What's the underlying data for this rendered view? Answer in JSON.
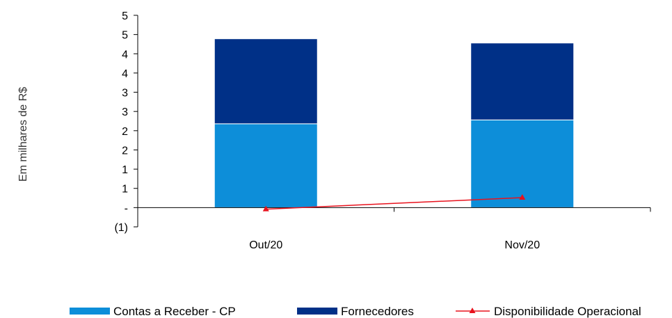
{
  "chart_data": {
    "type": "bar",
    "stacked": true,
    "categories": [
      "Out/20",
      "Nov/20"
    ],
    "y_tick_labels": [
      "(1)",
      "-",
      "1",
      "1",
      "2",
      "2",
      "3",
      "3",
      "4",
      "4",
      "5",
      "5"
    ],
    "ylabel": "Em milhares de R$",
    "ylim": [
      -0.5,
      5.0
    ],
    "grid": false,
    "legend_position": "bottom",
    "series": [
      {
        "name": "Contas a Receber  - CP",
        "type": "bar",
        "color": "#0d8ed9",
        "values": [
          2.18,
          2.28
        ]
      },
      {
        "name": "Fornecedores",
        "type": "bar",
        "color": "#003087",
        "values": [
          2.21,
          2.0
        ]
      },
      {
        "name": "Disponibilidade Operacional",
        "type": "line",
        "color": "#e8121d",
        "marker": "triangle",
        "values": [
          -0.04,
          0.26
        ]
      }
    ]
  }
}
